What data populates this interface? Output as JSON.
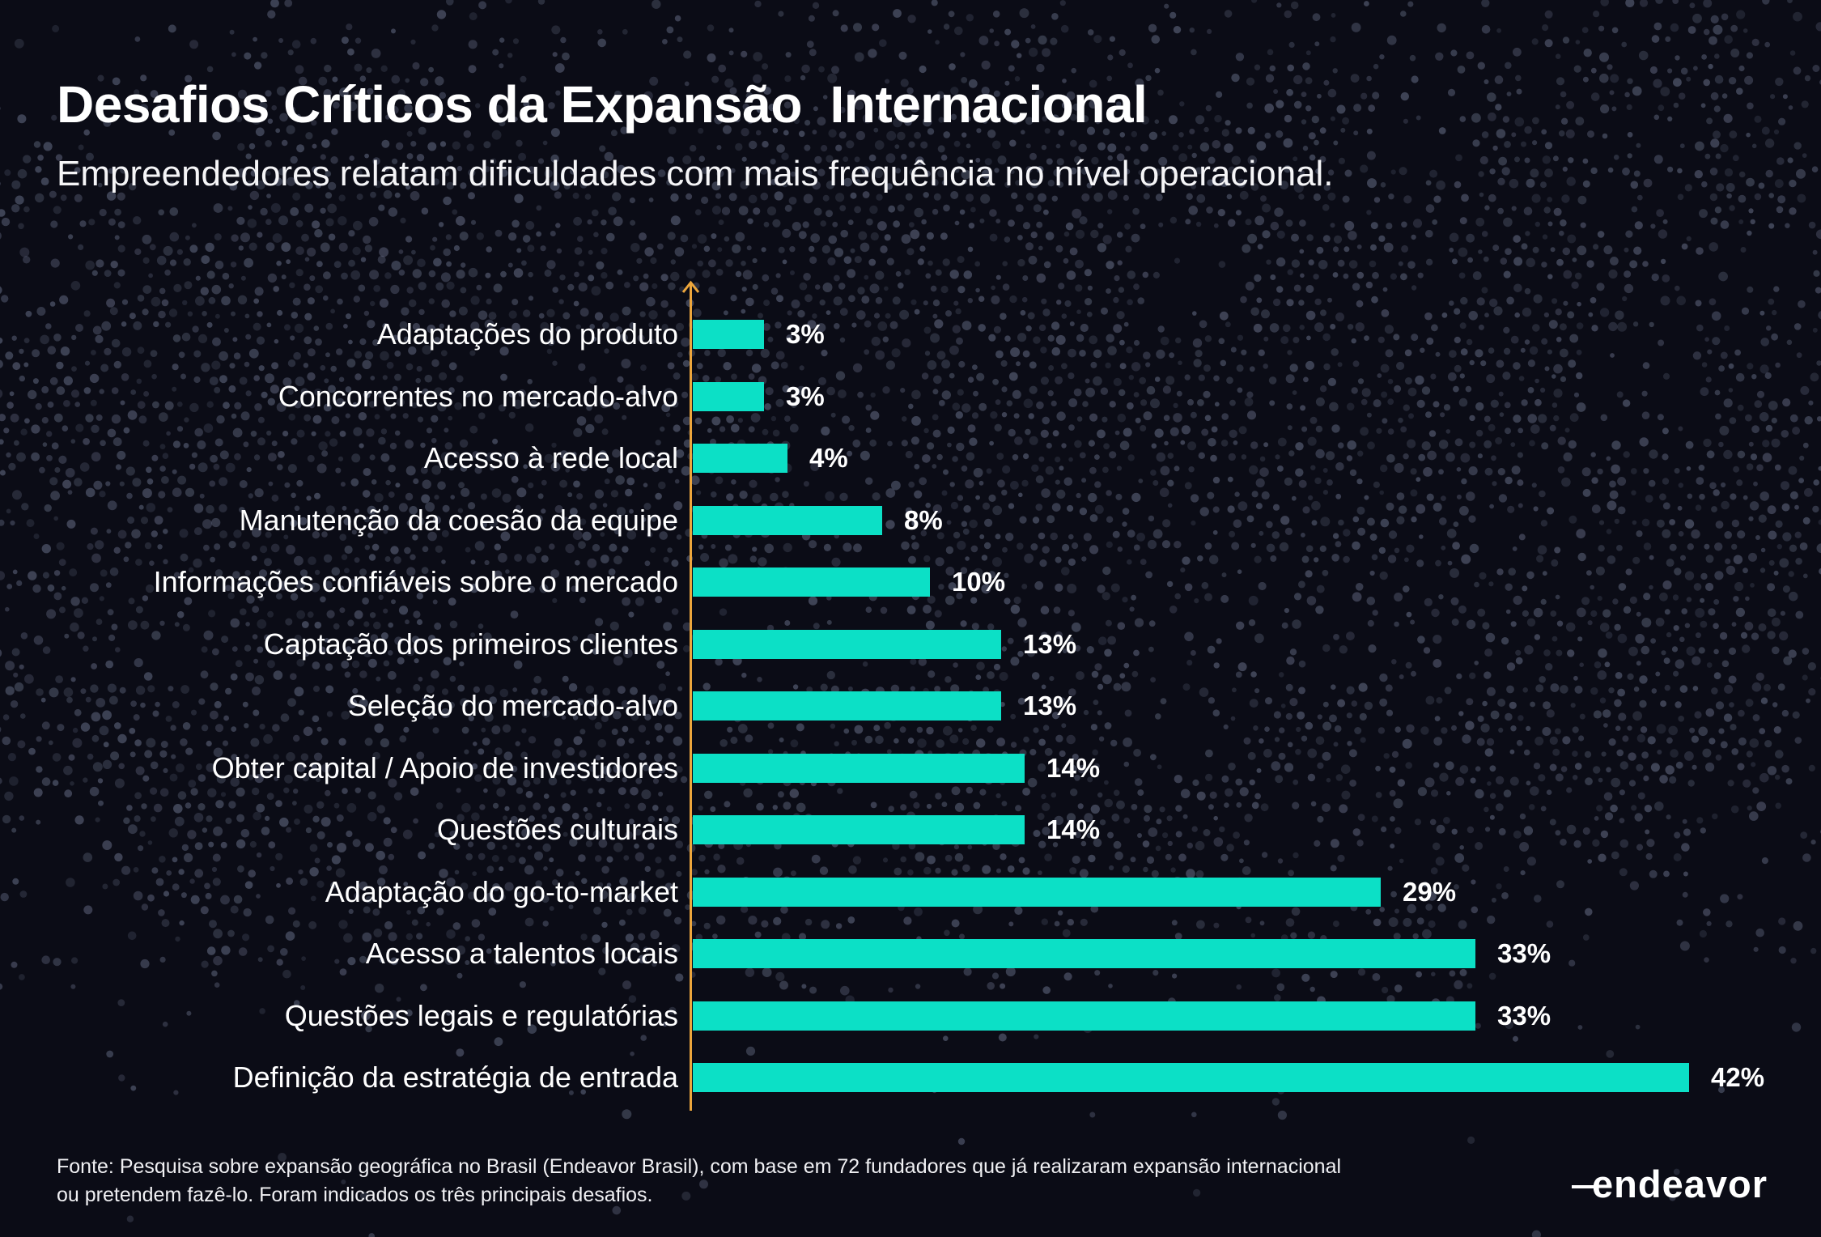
{
  "header": {
    "title": "Desafios Críticos da Expansão  Internacional",
    "subtitle": "Empreendedores relatam dificuldades com mais frequência no nível operacional."
  },
  "chart_data": {
    "type": "bar",
    "orientation": "horizontal",
    "title": "Desafios Críticos da Expansão Internacional",
    "subtitle": "Empreendedores relatam dificuldades com mais frequência no nível operacional.",
    "categories": [
      "Adaptações do produto",
      "Concorrentes no mercado-alvo",
      "Acesso à rede local",
      "Manutenção da coesão da equipe",
      "Informações confiáveis sobre o mercado",
      "Captação dos primeiros clientes",
      "Seleção do mercado-alvo",
      "Obter capital / Apoio de investidores",
      "Questões culturais",
      "Adaptação do go-to-market",
      "Acesso a talentos locais",
      "Questões legais e regulatórias",
      "Definição da estratégia de entrada"
    ],
    "values": [
      3,
      3,
      4,
      8,
      10,
      13,
      13,
      14,
      14,
      29,
      33,
      33,
      42
    ],
    "value_labels": [
      "3%",
      "3%",
      "4%",
      "8%",
      "10%",
      "13%",
      "13%",
      "14%",
      "14%",
      "29%",
      "33%",
      "33%",
      "42%"
    ],
    "value_suffix": "%",
    "xlim": [
      0,
      42
    ],
    "grid": false,
    "legend": false,
    "bar_color": "#0ce0c6",
    "axis_color": "#eda63c",
    "label_color": "#ffffff",
    "value_color": "#ffffff"
  },
  "footer": {
    "source_line1": "Fonte: Pesquisa sobre expansão geográfica no Brasil (Endeavor Brasil), com base em 72 fundadores que já realizaram expansão internacional",
    "source_line2": "ou pretendem fazê-lo. Foram indicados os três principais desafios.",
    "logo_text": "endeavor"
  },
  "colors": {
    "background": "#0b0c16",
    "dots": "#6e7690"
  }
}
